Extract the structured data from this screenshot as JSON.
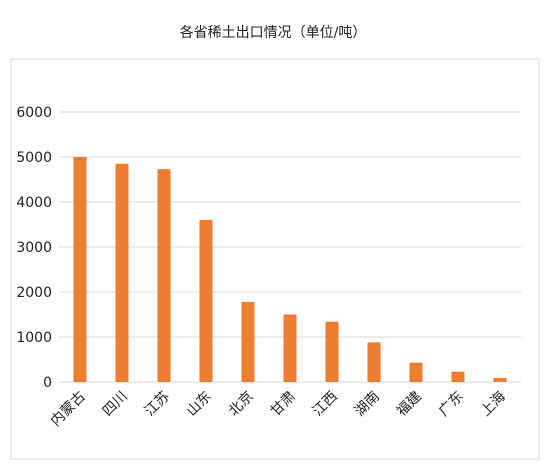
{
  "chart_data": {
    "type": "bar",
    "title": "各省稀土出口情况（单位/吨）",
    "categories": [
      "内蒙古",
      "四川",
      "江苏",
      "山东",
      "北京",
      "甘肃",
      "江西",
      "湖南",
      "福建",
      "广东",
      "上海"
    ],
    "series": [
      {
        "values": [
          5000,
          4850,
          4730,
          3600,
          1780,
          1500,
          1340,
          880,
          430,
          230,
          90
        ]
      }
    ],
    "ylim": [
      0,
      6000
    ],
    "yticks": [
      0,
      1000,
      2000,
      3000,
      4000,
      5000,
      6000
    ],
    "xlabel": "",
    "ylabel": "",
    "grid": true,
    "legend": false,
    "colors": {
      "bar": "#ED7D31",
      "grid": "#D9D9D9",
      "frame": "#D9D9D9",
      "text": "#222222"
    }
  }
}
